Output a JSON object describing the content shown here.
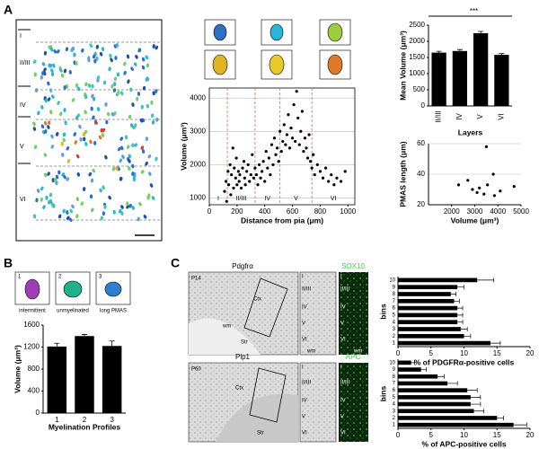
{
  "figure": {
    "panel_labels": [
      "A",
      "B",
      "C"
    ]
  },
  "panel_a_image": {
    "layers": [
      "I",
      "II/III",
      "IV",
      "V",
      "VI"
    ]
  },
  "panel_b_icons": [
    {
      "number": "1",
      "label": "intermittent"
    },
    {
      "number": "2",
      "label": "unmyelinated"
    },
    {
      "number": "3",
      "label": "long PMAS"
    }
  ],
  "panel_c": {
    "rows": [
      {
        "marker": "Pdgfrα",
        "stain": "SOX10",
        "age": "P14",
        "regions": [
          "Ctx",
          "wm",
          "Str"
        ],
        "layers": [
          "I",
          "II/III",
          "IV",
          "V",
          "VI",
          "wm"
        ]
      },
      {
        "marker": "Plp1",
        "stain": "APC",
        "age": "P60",
        "regions": [
          "Ctx",
          "Str"
        ],
        "layers": [
          "I",
          "II/III",
          "IV",
          "V",
          "VI"
        ]
      }
    ]
  },
  "chart_data": [
    {
      "type": "scatter",
      "x_label": "Distance from pia (μm)",
      "y_label": "Volume (μm³)",
      "x": [
        110,
        120,
        125,
        135,
        140,
        150,
        155,
        160,
        170,
        175,
        180,
        190,
        195,
        200,
        210,
        215,
        220,
        230,
        240,
        250,
        255,
        260,
        270,
        280,
        290,
        300,
        310,
        320,
        330,
        340,
        350,
        360,
        370,
        380,
        390,
        400,
        410,
        420,
        430,
        440,
        450,
        460,
        470,
        480,
        490,
        500,
        510,
        520,
        530,
        540,
        550,
        560,
        570,
        580,
        590,
        600,
        610,
        620,
        630,
        640,
        650,
        660,
        670,
        680,
        690,
        700,
        710,
        720,
        730,
        740,
        750,
        760,
        780,
        800,
        820,
        840,
        860,
        880,
        900,
        920,
        950,
        980
      ],
      "y": [
        1200,
        1500,
        900,
        1800,
        1400,
        2000,
        1100,
        1700,
        2500,
        1300,
        1900,
        1600,
        2200,
        1400,
        1800,
        1500,
        1700,
        1300,
        1900,
        2100,
        1600,
        1400,
        1800,
        2000,
        1500,
        1700,
        2300,
        1600,
        1900,
        1700,
        1400,
        2000,
        1600,
        1800,
        2100,
        1500,
        2400,
        1900,
        2200,
        1700,
        2600,
        2000,
        2800,
        2300,
        2500,
        2100,
        3000,
        2400,
        2700,
        3200,
        2600,
        2900,
        3500,
        2500,
        3100,
        2800,
        3800,
        2700,
        4200,
        3400,
        2600,
        3000,
        3600,
        2400,
        2800,
        2500,
        2200,
        2900,
        2100,
        1900,
        2300,
        1700,
        2000,
        1800,
        1600,
        1900,
        1500,
        1700,
        1400,
        1600,
        1500,
        1800
      ],
      "color": "#000000",
      "xlim": [
        0,
        1050
      ],
      "xticks": [
        0,
        200,
        400,
        600,
        800,
        1000
      ],
      "ylim": [
        800,
        4300
      ],
      "yticks": [
        1000,
        2000,
        3000,
        4000
      ],
      "grid": true,
      "layer_bounds": [
        130,
        330,
        510,
        740
      ],
      "layer_labels": [
        "I",
        "II/III",
        "IV",
        "V",
        "VI"
      ],
      "bound_color": "#e8636f"
    },
    {
      "type": "bar",
      "x_label": "Layers",
      "y_label": "Mean Volume (μm³)",
      "categories": [
        "II/III",
        "IV",
        "V",
        "VI"
      ],
      "values": [
        1650,
        1700,
        2250,
        1580
      ],
      "errors": [
        40,
        45,
        55,
        40
      ],
      "color": "#000000",
      "ylim": [
        0,
        2500
      ],
      "yticks": [
        0,
        500,
        1000,
        1500,
        2000,
        2500
      ],
      "annotation": "***"
    },
    {
      "type": "scatter",
      "x_label": "Volume (μm³)",
      "y_label": "PMAS length (μm)",
      "x": [
        2300,
        2700,
        2900,
        3100,
        3200,
        3400,
        3500,
        3550,
        3800,
        3850,
        4100,
        4700
      ],
      "y": [
        33,
        36,
        30,
        28,
        31,
        27,
        58,
        33,
        40,
        26,
        29,
        32
      ],
      "color": "#000000",
      "xlim": [
        1000,
        5000
      ],
      "xticks": [
        2000,
        3000,
        4000,
        5000
      ],
      "ylim": [
        20,
        60
      ],
      "yticks": [
        20,
        40,
        60
      ],
      "grid": true
    },
    {
      "type": "bar",
      "x_label": "Myelination Profiles",
      "y_label": "Volume (μm³)",
      "categories": [
        "1",
        "2",
        "3"
      ],
      "values": [
        1210,
        1400,
        1220
      ],
      "errors": [
        60,
        30,
        90
      ],
      "color": "#000000",
      "ylim": [
        0,
        1600
      ],
      "yticks": [
        0,
        400,
        800,
        1200,
        1600
      ]
    },
    {
      "type": "hbar",
      "x_label": "%  of PDGFRα-positive cells",
      "y_label": "bins",
      "categories": [
        "1",
        "2",
        "3",
        "4",
        "5",
        "6",
        "7",
        "8",
        "9",
        "10"
      ],
      "values": [
        14,
        10,
        9.5,
        9,
        9,
        9,
        8.5,
        8,
        9,
        12
      ],
      "errors": [
        1.5,
        1,
        1,
        0.8,
        0.8,
        0.8,
        0.8,
        0.8,
        1,
        2.5
      ],
      "color": "#000000",
      "xlim": [
        0,
        20
      ],
      "xticks": [
        0,
        5,
        10,
        15,
        20
      ]
    },
    {
      "type": "hbar",
      "x_label": "%  of APC-positive cells",
      "y_label": "bins",
      "categories": [
        "1",
        "2",
        "3",
        "4",
        "5",
        "6",
        "7",
        "8",
        "9",
        "10"
      ],
      "values": [
        17.5,
        15,
        11.5,
        11,
        11,
        10.5,
        7.5,
        6,
        3.5,
        2
      ],
      "errors": [
        2,
        1,
        1.5,
        1.5,
        1.5,
        1.5,
        1.5,
        1,
        0.8,
        0.5
      ],
      "color": "#000000",
      "xlim": [
        0,
        20
      ],
      "xticks": [
        0,
        5,
        10,
        15,
        20
      ]
    }
  ]
}
